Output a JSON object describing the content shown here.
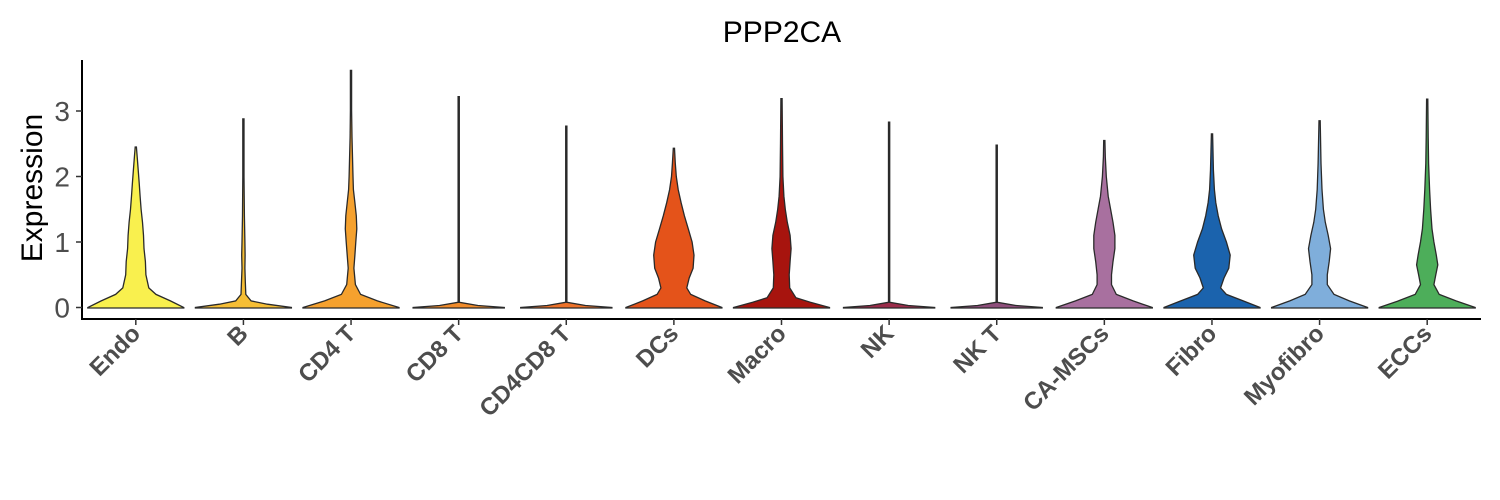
{
  "chart_data": {
    "type": "violin",
    "title": "PPP2CA",
    "xlabel": "",
    "ylabel": "Expression",
    "ylim": [
      -0.2,
      3.8
    ],
    "yticks": [
      0,
      1,
      2,
      3
    ],
    "grid": false,
    "legend": "none",
    "categories": [
      "Endo",
      "B",
      "CD4 T",
      "CD8 T",
      "CD4CD8 T",
      "DCs",
      "Macro",
      "NK",
      "NK T",
      "CA-MSCs",
      "Fibro",
      "Myofibro",
      "ECCs"
    ],
    "colors": [
      "#F9F04E",
      "#F6BE34",
      "#F5A12E",
      "#F08B2B",
      "#EC7129",
      "#E4531A",
      "#A7140E",
      "#9B2C4A",
      "#8E4E7B",
      "#A8709F",
      "#1B63AD",
      "#7FAEDB",
      "#4DAE5A"
    ],
    "violins": [
      {
        "category": "Endo",
        "max": 2.45,
        "profile": [
          [
            0,
            1
          ],
          [
            0.1,
            0.72
          ],
          [
            0.2,
            0.42
          ],
          [
            0.3,
            0.27
          ],
          [
            0.5,
            0.21
          ],
          [
            0.7,
            0.2
          ],
          [
            0.9,
            0.17
          ],
          [
            1.1,
            0.16
          ],
          [
            1.3,
            0.14
          ],
          [
            1.5,
            0.11
          ],
          [
            1.7,
            0.09
          ],
          [
            1.9,
            0.07
          ],
          [
            2.1,
            0.05
          ],
          [
            2.3,
            0.03
          ],
          [
            2.45,
            0
          ]
        ]
      },
      {
        "category": "B",
        "max": 2.88,
        "profile": [
          [
            0,
            1
          ],
          [
            0.05,
            0.5
          ],
          [
            0.1,
            0.16
          ],
          [
            0.2,
            0.05
          ],
          [
            0.4,
            0.04
          ],
          [
            0.6,
            0.03
          ],
          [
            0.8,
            0.035
          ],
          [
            1.0,
            0.03
          ],
          [
            1.4,
            0.02
          ],
          [
            2.0,
            0.01
          ],
          [
            2.88,
            0
          ]
        ]
      },
      {
        "category": "CD4 T",
        "max": 3.62,
        "profile": [
          [
            0,
            1
          ],
          [
            0.1,
            0.55
          ],
          [
            0.2,
            0.2
          ],
          [
            0.35,
            0.09
          ],
          [
            0.6,
            0.06
          ],
          [
            0.8,
            0.08
          ],
          [
            1.0,
            0.1
          ],
          [
            1.2,
            0.12
          ],
          [
            1.4,
            0.11
          ],
          [
            1.6,
            0.08
          ],
          [
            1.8,
            0.05
          ],
          [
            2.0,
            0.04
          ],
          [
            2.3,
            0.03
          ],
          [
            2.6,
            0.02
          ],
          [
            3.0,
            0.01
          ],
          [
            3.62,
            0
          ]
        ]
      },
      {
        "category": "CD8 T",
        "max": 3.22,
        "profile": [
          [
            0,
            0.95
          ],
          [
            0.03,
            0.4
          ],
          [
            0.08,
            0.01
          ],
          [
            3.22,
            0
          ]
        ]
      },
      {
        "category": "CD4CD8 T",
        "max": 2.77,
        "profile": [
          [
            0,
            0.95
          ],
          [
            0.03,
            0.4
          ],
          [
            0.08,
            0.01
          ],
          [
            2.77,
            0
          ]
        ]
      },
      {
        "category": "DCs",
        "max": 2.43,
        "profile": [
          [
            0,
            1
          ],
          [
            0.1,
            0.65
          ],
          [
            0.2,
            0.35
          ],
          [
            0.3,
            0.27
          ],
          [
            0.45,
            0.32
          ],
          [
            0.6,
            0.4
          ],
          [
            0.8,
            0.42
          ],
          [
            1.0,
            0.38
          ],
          [
            1.2,
            0.3
          ],
          [
            1.4,
            0.22
          ],
          [
            1.6,
            0.15
          ],
          [
            1.8,
            0.09
          ],
          [
            2.0,
            0.05
          ],
          [
            2.2,
            0.03
          ],
          [
            2.43,
            0
          ]
        ]
      },
      {
        "category": "Macro",
        "max": 3.19,
        "profile": [
          [
            0,
            1
          ],
          [
            0.08,
            0.6
          ],
          [
            0.15,
            0.3
          ],
          [
            0.3,
            0.17
          ],
          [
            0.5,
            0.16
          ],
          [
            0.7,
            0.18
          ],
          [
            0.9,
            0.2
          ],
          [
            1.1,
            0.18
          ],
          [
            1.3,
            0.12
          ],
          [
            1.5,
            0.08
          ],
          [
            1.7,
            0.05
          ],
          [
            2.0,
            0.03
          ],
          [
            2.5,
            0.02
          ],
          [
            3.19,
            0
          ]
        ]
      },
      {
        "category": "NK",
        "max": 2.83,
        "profile": [
          [
            0,
            0.95
          ],
          [
            0.03,
            0.4
          ],
          [
            0.08,
            0.01
          ],
          [
            2.83,
            0
          ]
        ]
      },
      {
        "category": "NK T",
        "max": 2.48,
        "profile": [
          [
            0,
            0.95
          ],
          [
            0.03,
            0.4
          ],
          [
            0.08,
            0.01
          ],
          [
            2.48,
            0
          ]
        ]
      },
      {
        "category": "CA-MSCs",
        "max": 2.55,
        "profile": [
          [
            0,
            1
          ],
          [
            0.1,
            0.6
          ],
          [
            0.2,
            0.25
          ],
          [
            0.35,
            0.15
          ],
          [
            0.5,
            0.15
          ],
          [
            0.7,
            0.18
          ],
          [
            0.9,
            0.22
          ],
          [
            1.1,
            0.22
          ],
          [
            1.3,
            0.18
          ],
          [
            1.5,
            0.13
          ],
          [
            1.7,
            0.08
          ],
          [
            2.0,
            0.04
          ],
          [
            2.3,
            0.02
          ],
          [
            2.55,
            0
          ]
        ]
      },
      {
        "category": "Fibro",
        "max": 2.65,
        "profile": [
          [
            0,
            1
          ],
          [
            0.1,
            0.65
          ],
          [
            0.2,
            0.3
          ],
          [
            0.3,
            0.18
          ],
          [
            0.45,
            0.25
          ],
          [
            0.6,
            0.35
          ],
          [
            0.8,
            0.38
          ],
          [
            1.0,
            0.3
          ],
          [
            1.2,
            0.2
          ],
          [
            1.4,
            0.13
          ],
          [
            1.6,
            0.08
          ],
          [
            1.8,
            0.05
          ],
          [
            2.1,
            0.03
          ],
          [
            2.65,
            0
          ]
        ]
      },
      {
        "category": "Myofibro",
        "max": 2.85,
        "profile": [
          [
            0,
            1
          ],
          [
            0.1,
            0.62
          ],
          [
            0.2,
            0.3
          ],
          [
            0.35,
            0.16
          ],
          [
            0.5,
            0.16
          ],
          [
            0.7,
            0.2
          ],
          [
            0.9,
            0.23
          ],
          [
            1.1,
            0.18
          ],
          [
            1.3,
            0.12
          ],
          [
            1.5,
            0.08
          ],
          [
            1.8,
            0.05
          ],
          [
            2.2,
            0.03
          ],
          [
            2.85,
            0
          ]
        ]
      },
      {
        "category": "ECCs",
        "max": 3.18,
        "profile": [
          [
            0,
            1
          ],
          [
            0.1,
            0.6
          ],
          [
            0.2,
            0.25
          ],
          [
            0.35,
            0.14
          ],
          [
            0.5,
            0.18
          ],
          [
            0.65,
            0.22
          ],
          [
            0.8,
            0.19
          ],
          [
            1.0,
            0.14
          ],
          [
            1.2,
            0.1
          ],
          [
            1.5,
            0.07
          ],
          [
            1.8,
            0.05
          ],
          [
            2.2,
            0.03
          ],
          [
            2.6,
            0.02
          ],
          [
            3.18,
            0
          ]
        ]
      }
    ]
  }
}
